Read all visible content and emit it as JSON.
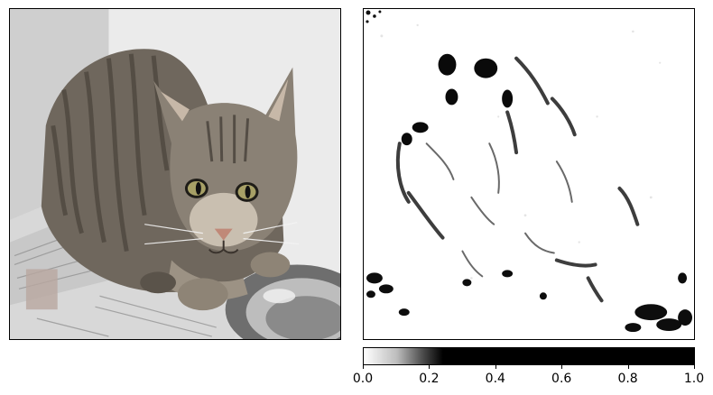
{
  "figure": {
    "photo": {
      "subject_icon": "tabby-cat-photo",
      "background_color": "#e3e3e3"
    },
    "saliency": {
      "subject_icon": "saliency-map",
      "background_color": "#ffffff",
      "ink_color": "#000000"
    },
    "colorbar": {
      "colormap": "gray_r",
      "ticks": [
        {
          "value": 0.0,
          "label": "0.0"
        },
        {
          "value": 0.2,
          "label": "0.2"
        },
        {
          "value": 0.4,
          "label": "0.4"
        },
        {
          "value": 0.6,
          "label": "0.6"
        },
        {
          "value": 0.8,
          "label": "0.8"
        },
        {
          "value": 1.0,
          "label": "1.0"
        }
      ],
      "range": [
        0.0,
        1.0
      ]
    }
  }
}
